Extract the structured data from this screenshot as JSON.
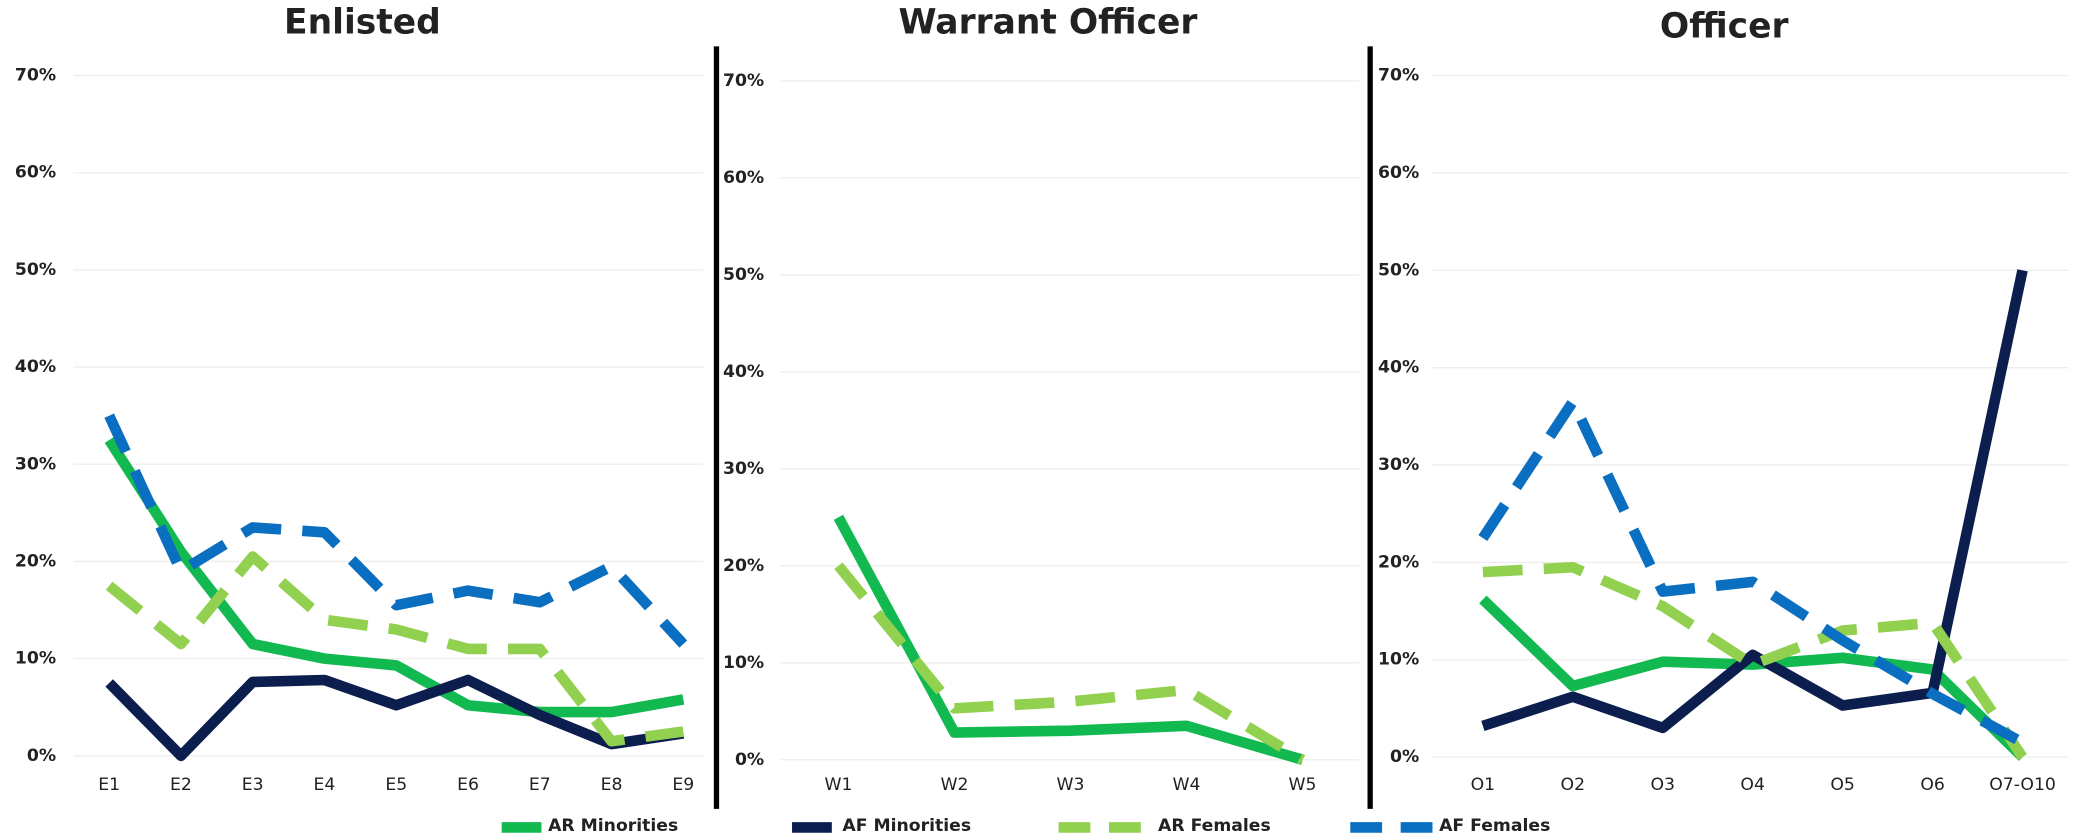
{
  "chart_data": [
    {
      "type": "line",
      "title": "Enlisted",
      "categories": [
        "E1",
        "E2",
        "E3",
        "E4",
        "E5",
        "E6",
        "E7",
        "E8",
        "E9"
      ],
      "ylim": [
        0,
        70
      ],
      "yticks": [
        {
          "value": 0,
          "label": "0%"
        },
        {
          "value": 10,
          "label": "10%"
        },
        {
          "value": 20,
          "label": "20%"
        },
        {
          "value": 30,
          "label": "30%"
        },
        {
          "value": 40,
          "label": "40%"
        },
        {
          "value": 50,
          "label": "50%"
        },
        {
          "value": 60,
          "label": "60%"
        },
        {
          "value": 70,
          "label": "70%"
        }
      ],
      "grid": true,
      "series": [
        {
          "name": "AR Minorities",
          "color": "#12b850",
          "dashed": false,
          "values": [
            32.5,
            21,
            11.5,
            10,
            9.3,
            5.2,
            4.5,
            4.5,
            5.8
          ]
        },
        {
          "name": "AF Minorities",
          "color": "#0c1e4e",
          "dashed": false,
          "values": [
            7.5,
            0,
            7.6,
            7.8,
            5.2,
            7.8,
            4.2,
            1.2,
            2.3
          ]
        },
        {
          "name": "AR Females",
          "color": "#92d050",
          "dashed": true,
          "values": [
            17.5,
            11.5,
            20.5,
            14,
            13,
            11,
            11,
            1.5,
            2.5
          ]
        },
        {
          "name": "AF Females",
          "color": "#0a6fc0",
          "dashed": true,
          "values": [
            35,
            19,
            23.5,
            23,
            15.5,
            17,
            15.8,
            19.5,
            11.5
          ]
        }
      ]
    },
    {
      "type": "line",
      "title": "Warrant Officer",
      "categories": [
        "W1",
        "W2",
        "W3",
        "W4",
        "W5"
      ],
      "ylim": [
        0,
        70
      ],
      "yticks": [
        {
          "value": 0,
          "label": "0%"
        },
        {
          "value": 10,
          "label": "10%"
        },
        {
          "value": 20,
          "label": "20%"
        },
        {
          "value": 30,
          "label": "30%"
        },
        {
          "value": 40,
          "label": "40%"
        },
        {
          "value": 50,
          "label": "50%"
        },
        {
          "value": 60,
          "label": "60%"
        },
        {
          "value": 70,
          "label": "70%"
        }
      ],
      "grid": true,
      "series": [
        {
          "name": "AR Minorities",
          "color": "#12b850",
          "dashed": false,
          "values": [
            25,
            2.8,
            3,
            3.5,
            0
          ]
        },
        {
          "name": "AR Females",
          "color": "#92d050",
          "dashed": true,
          "values": [
            20,
            5.3,
            6,
            7.2,
            0
          ]
        }
      ]
    },
    {
      "type": "line",
      "title": "Officer",
      "categories": [
        "O1",
        "O2",
        "O3",
        "O4",
        "O5",
        "O6",
        "O7-O10"
      ],
      "ylim": [
        0,
        70
      ],
      "yticks": [
        {
          "value": 0,
          "label": "0%"
        },
        {
          "value": 10,
          "label": "10%"
        },
        {
          "value": 20,
          "label": "20%"
        },
        {
          "value": 30,
          "label": "30%"
        },
        {
          "value": 40,
          "label": "40%"
        },
        {
          "value": 50,
          "label": "50%"
        },
        {
          "value": 60,
          "label": "60%"
        },
        {
          "value": 70,
          "label": "70%"
        }
      ],
      "grid": true,
      "series": [
        {
          "name": "AR Minorities",
          "color": "#12b850",
          "dashed": false,
          "values": [
            16.2,
            7.3,
            9.8,
            9.5,
            10.2,
            9,
            0
          ]
        },
        {
          "name": "AF Minorities",
          "color": "#0c1e4e",
          "dashed": false,
          "values": [
            3.2,
            6.2,
            3,
            10.5,
            5.3,
            6.6,
            50
          ]
        },
        {
          "name": "AR Females",
          "color": "#92d050",
          "dashed": true,
          "values": [
            19,
            19.5,
            15.5,
            9.5,
            13,
            13.8,
            0
          ]
        },
        {
          "name": "AF Females",
          "color": "#0a6fc0",
          "dashed": true,
          "values": [
            22.5,
            36.5,
            17,
            18,
            12,
            6.5,
            1.5
          ]
        }
      ]
    }
  ]
}
